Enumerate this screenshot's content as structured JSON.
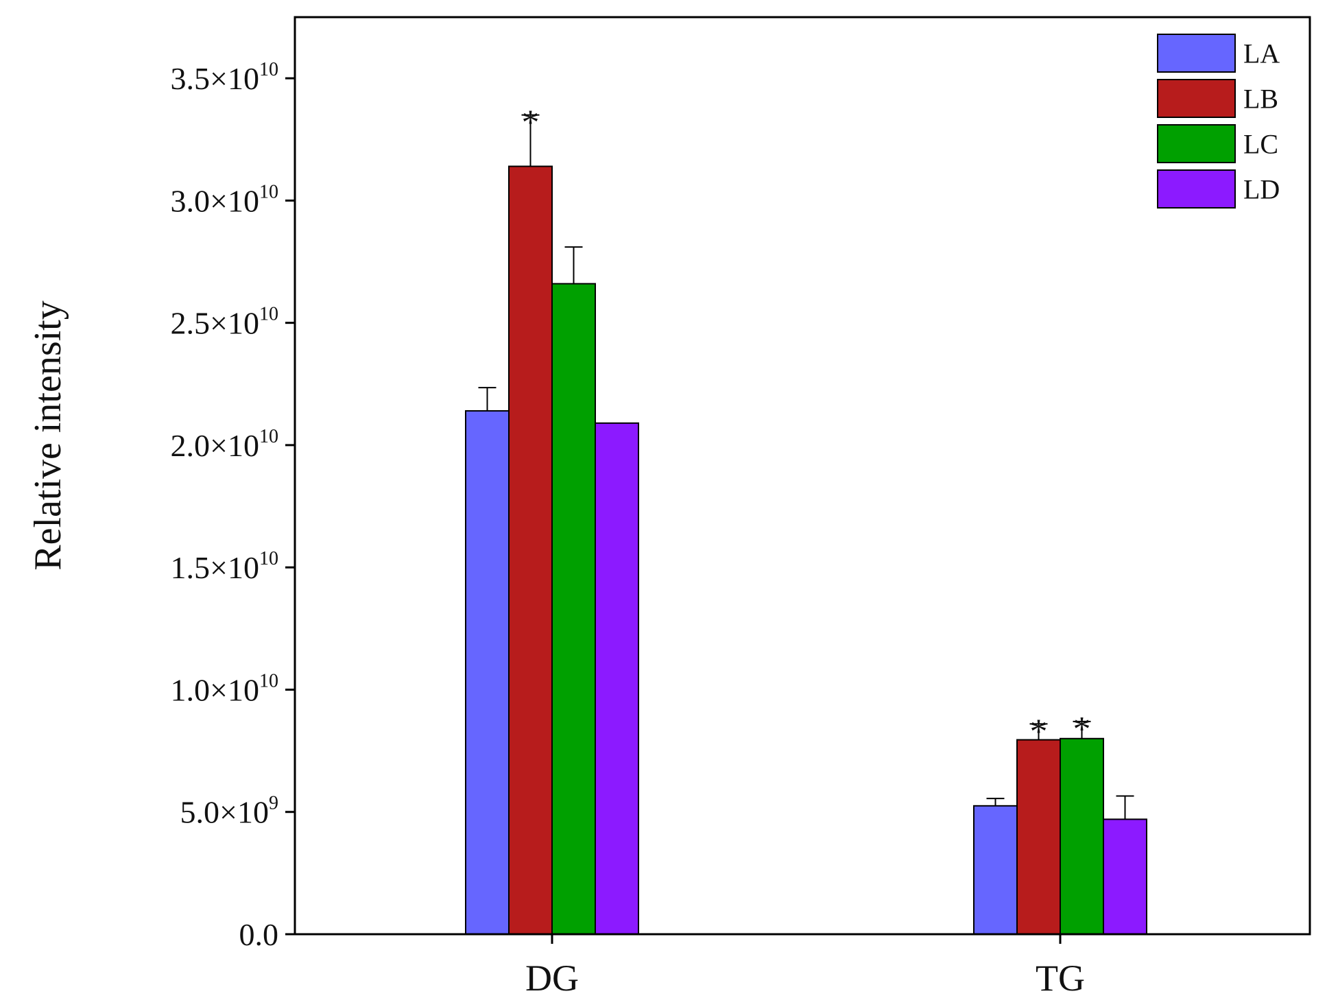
{
  "chart_data": {
    "type": "bar",
    "title": "",
    "xlabel": "",
    "ylabel": "Relative intensity",
    "categories": [
      "DG",
      "TG"
    ],
    "ylim": [
      0,
      37500000000.0
    ],
    "yticks": [
      {
        "value": 0,
        "mantissa": "0.0",
        "exponent": ""
      },
      {
        "value": 5000000000.0,
        "mantissa": "5.0×10",
        "exponent": "9"
      },
      {
        "value": 10000000000.0,
        "mantissa": "1.0×10",
        "exponent": "10"
      },
      {
        "value": 15000000000.0,
        "mantissa": "1.5×10",
        "exponent": "10"
      },
      {
        "value": 20000000000.0,
        "mantissa": "2.0×10",
        "exponent": "10"
      },
      {
        "value": 25000000000.0,
        "mantissa": "2.5×10",
        "exponent": "10"
      },
      {
        "value": 30000000000.0,
        "mantissa": "3.0×10",
        "exponent": "10"
      },
      {
        "value": 35000000000.0,
        "mantissa": "3.5×10",
        "exponent": "10"
      }
    ],
    "series": [
      {
        "name": "LA",
        "color": "#6666ff",
        "values": [
          21400000000.0,
          5250000000.0
        ],
        "errors": [
          950000000.0,
          300000000.0
        ],
        "significant": [
          false,
          false
        ]
      },
      {
        "name": "LB",
        "color": "#b71c1c",
        "values": [
          31400000000.0,
          7950000000.0
        ],
        "errors": [
          2100000000.0,
          650000000.0
        ],
        "significant": [
          true,
          true
        ]
      },
      {
        "name": "LC",
        "color": "#00a000",
        "values": [
          26600000000.0,
          8000000000.0
        ],
        "errors": [
          1500000000.0,
          700000000.0
        ],
        "significant": [
          false,
          true
        ]
      },
      {
        "name": "LD",
        "color": "#8c1aff",
        "values": [
          20900000000.0,
          4700000000.0
        ],
        "errors": [
          0,
          950000000.0
        ],
        "significant": [
          false,
          false
        ]
      }
    ],
    "significance_marker": "*",
    "legend_position": "top-right",
    "grid": false
  }
}
